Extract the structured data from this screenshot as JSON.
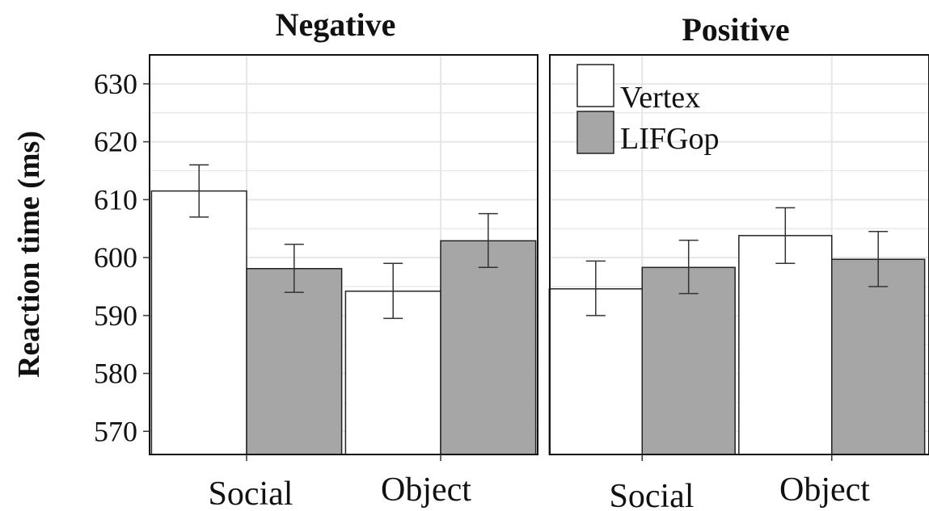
{
  "chart_data": {
    "type": "bar",
    "ylabel": "Reaction time (ms)",
    "ylim": [
      566,
      635
    ],
    "yticks": [
      570,
      580,
      590,
      600,
      610,
      620,
      630
    ],
    "categories": [
      "Social",
      "Object"
    ],
    "grid": true,
    "legend_position": "top-left of right panel",
    "colors": {
      "Vertex": "#ffffff",
      "LIFGop": "#a6a6a6",
      "border": "#222222",
      "grid": "#e6e6e6"
    },
    "series_names": [
      "Vertex",
      "LIFGop"
    ],
    "panels": [
      {
        "title": "Negative",
        "series": [
          {
            "name": "Vertex",
            "values": [
              611.5,
              594.2
            ],
            "error_low": [
              607.0,
              589.5
            ],
            "error_high": [
              616.0,
              599.0
            ]
          },
          {
            "name": "LIFGop",
            "values": [
              598.1,
              602.9
            ],
            "error_low": [
              594.0,
              598.3
            ],
            "error_high": [
              602.3,
              607.6
            ]
          }
        ]
      },
      {
        "title": "Positive",
        "series": [
          {
            "name": "Vertex",
            "values": [
              594.6,
              603.8
            ],
            "error_low": [
              590.0,
              599.0
            ],
            "error_high": [
              599.4,
              608.6
            ]
          },
          {
            "name": "LIFGop",
            "values": [
              598.3,
              599.7
            ],
            "error_low": [
              593.8,
              595.0
            ],
            "error_high": [
              603.0,
              604.5
            ]
          }
        ]
      }
    ]
  }
}
